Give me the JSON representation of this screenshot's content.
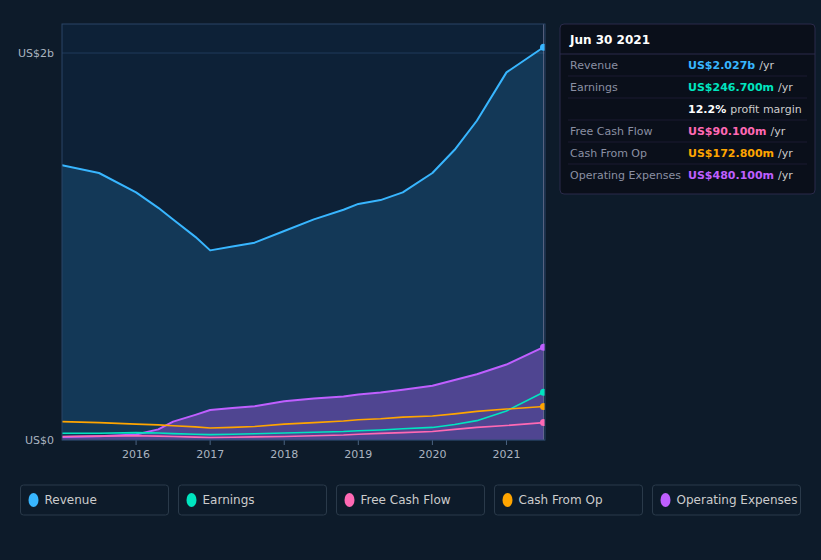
{
  "chart_data": {
    "type": "line",
    "x": [
      2015.0,
      2015.5,
      2016.0,
      2016.3,
      2016.5,
      2016.8,
      2017.0,
      2017.3,
      2017.6,
      2018.0,
      2018.4,
      2018.8,
      2019.0,
      2019.3,
      2019.6,
      2020.0,
      2020.3,
      2020.6,
      2021.0,
      2021.5
    ],
    "xlim": [
      2015.0,
      2021.52
    ],
    "xticks": [
      2016,
      2017,
      2018,
      2019,
      2020,
      2021
    ],
    "ylim": [
      0,
      2.15
    ],
    "yticks": [
      {
        "value": 0,
        "label": "US$0"
      },
      {
        "value": 2.0,
        "label": "US$2b"
      }
    ],
    "grid": true,
    "legend": "bottom",
    "series": [
      {
        "name": "Revenue",
        "color": "#38b6ff",
        "type": "area",
        "values": [
          1.42,
          1.38,
          1.28,
          1.2,
          1.14,
          1.05,
          0.98,
          1.0,
          1.02,
          1.08,
          1.14,
          1.19,
          1.22,
          1.24,
          1.28,
          1.38,
          1.5,
          1.65,
          1.9,
          2.03
        ]
      },
      {
        "name": "Earnings",
        "color": "#00e5c0",
        "values": [
          0.035,
          0.035,
          0.038,
          0.036,
          0.033,
          0.03,
          0.028,
          0.03,
          0.032,
          0.036,
          0.04,
          0.044,
          0.048,
          0.052,
          0.058,
          0.065,
          0.08,
          0.1,
          0.15,
          0.247
        ]
      },
      {
        "name": "Free Cash Flow",
        "color": "#ff69b4",
        "values": [
          0.018,
          0.02,
          0.022,
          0.02,
          0.018,
          0.015,
          0.013,
          0.014,
          0.016,
          0.018,
          0.022,
          0.026,
          0.03,
          0.034,
          0.038,
          0.044,
          0.055,
          0.065,
          0.075,
          0.09
        ]
      },
      {
        "name": "Cash From Op",
        "color": "#ffa500",
        "values": [
          0.095,
          0.09,
          0.082,
          0.078,
          0.074,
          0.068,
          0.062,
          0.065,
          0.07,
          0.082,
          0.09,
          0.098,
          0.105,
          0.11,
          0.118,
          0.124,
          0.135,
          0.148,
          0.16,
          0.173
        ]
      },
      {
        "name": "Operating Expenses",
        "color": "#bf5fff",
        "type": "area",
        "values": [
          0.015,
          0.02,
          0.028,
          0.055,
          0.095,
          0.13,
          0.155,
          0.165,
          0.175,
          0.2,
          0.215,
          0.225,
          0.235,
          0.245,
          0.26,
          0.28,
          0.31,
          0.34,
          0.39,
          0.48
        ]
      }
    ],
    "annotations": [
      {
        "text": [
          "Jun 30 2021"
        ]
      },
      {
        "text": [
          "Revenue",
          "US$2.027b",
          "/yr"
        ],
        "color": "#38b6ff"
      },
      {
        "text": [
          "Earnings",
          "US$246.700m",
          "/yr"
        ],
        "color": "#00e5c0"
      },
      {
        "text": [
          "12.2%",
          "profit margin"
        ],
        "color": "#ffffff"
      },
      {
        "text": [
          "Free Cash Flow",
          "US$90.100m",
          "/yr"
        ],
        "color": "#ff69b4"
      },
      {
        "text": [
          "Cash From Op",
          "US$172.800m",
          "/yr"
        ],
        "color": "#ffa500"
      },
      {
        "text": [
          "Operating Expenses",
          "US$480.100m",
          "/yr"
        ],
        "color": "#bf5fff"
      }
    ]
  }
}
